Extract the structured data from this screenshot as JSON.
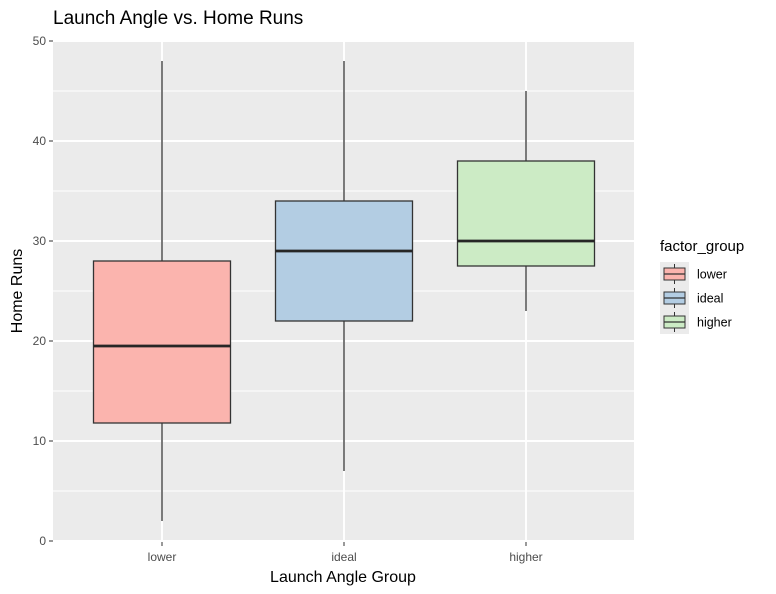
{
  "chart_data": {
    "type": "boxplot",
    "title": "Launch Angle vs. Home Runs",
    "xlabel": "Launch Angle Group",
    "ylabel": "Home Runs",
    "ylim": [
      0,
      50
    ],
    "yticks": [
      0,
      10,
      20,
      30,
      40,
      50
    ],
    "categories": [
      "lower",
      "ideal",
      "higher"
    ],
    "boxes": [
      {
        "category": "lower",
        "min": 2,
        "q1": 11.8,
        "median": 19.5,
        "q3": 28,
        "max": 48,
        "fill": "#FBB4AE"
      },
      {
        "category": "ideal",
        "min": 7,
        "q1": 22,
        "median": 29,
        "q3": 34,
        "max": 48,
        "fill": "#B3CDE3"
      },
      {
        "category": "higher",
        "min": 23,
        "q1": 27.5,
        "median": 30,
        "q3": 38,
        "max": 45,
        "fill": "#CCEBC5"
      }
    ],
    "legend": {
      "title": "factor_group",
      "position": "right",
      "items": [
        "lower",
        "ideal",
        "higher"
      ]
    },
    "grid": true,
    "panel_background": "#EBEBEB",
    "grid_color": "#FFFFFF"
  }
}
